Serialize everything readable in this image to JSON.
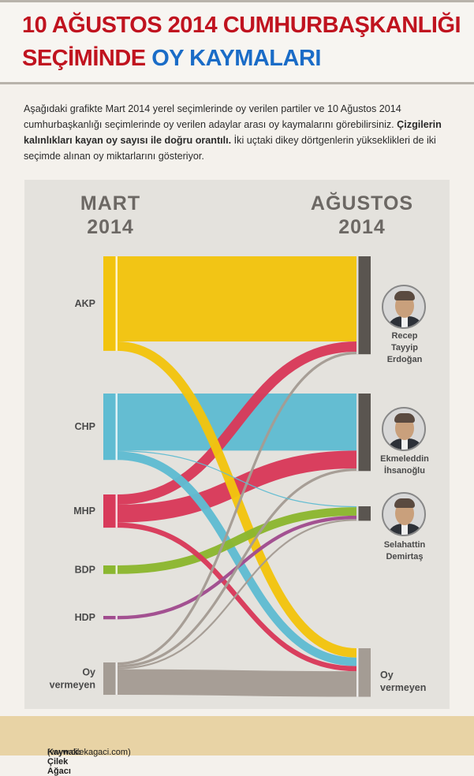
{
  "title": {
    "line1": "10 AĞUSTOS 2014 CUMHURBAŞKANLIĞI",
    "line2_red": "SEÇİMİNDE",
    "line2_blue": "OY KAYMALARI"
  },
  "intro": {
    "p1": "Aşağıdaki grafikte Mart 2014 yerel seçimlerinde oy verilen partiler ve 10 Ağustos 2014 cumhurbaşkanlığı seçimlerinde oy verilen adaylar arası oy kaymalarını görebilirsiniz.",
    "bold": "Çizgilerin kalınlıkları kayan oy sayısı ile doğru orantılı.",
    "p2": "İki uçtaki dikey dörtgenlerin yükseklikleri de iki seçimde alınan oy miktarlarını gösteriyor."
  },
  "chart_data": {
    "type": "sankey",
    "left_title": [
      "MART",
      "2014"
    ],
    "right_title": [
      "AĞUSTOS",
      "2014"
    ],
    "colors": {
      "AKP": "#f2c40e",
      "CHP": "#5fbcd2",
      "MHP": "#d83a5a",
      "BDP": "#8bb730",
      "HDP": "#a04c8e",
      "Oy vermeyen": "#a49c94",
      "node": "#5a5550"
    },
    "left_nodes": [
      {
        "name": "AKP",
        "label": [
          "AKP"
        ]
      },
      {
        "name": "CHP",
        "label": [
          "CHP"
        ]
      },
      {
        "name": "MHP",
        "label": [
          "MHP"
        ]
      },
      {
        "name": "BDP",
        "label": [
          "BDP"
        ]
      },
      {
        "name": "HDP",
        "label": [
          "HDP"
        ]
      },
      {
        "name": "Oy vermeyen",
        "label": [
          "Oy",
          "vermeyen"
        ]
      }
    ],
    "right_nodes": [
      {
        "name": "Erdoğan",
        "label": [
          "Recep",
          "Tayyip",
          "Erdoğan"
        ],
        "icon": "erdogan-portrait"
      },
      {
        "name": "İhsanoğlu",
        "label": [
          "Ekmeleddin",
          "İhsanoğlu"
        ],
        "icon": "ihsanoglu-portrait"
      },
      {
        "name": "Demirtaş",
        "label": [
          "Selahattin",
          "Demirtaş"
        ],
        "icon": "demirtas-portrait"
      },
      {
        "name": "Oy vermeyen",
        "label": [
          "Oy",
          "vermeyen"
        ]
      }
    ],
    "flows": [
      {
        "source": "AKP",
        "target": "Erdoğan",
        "value": 100
      },
      {
        "source": "AKP",
        "target": "Oy vermeyen",
        "value": 11
      },
      {
        "source": "CHP",
        "target": "İhsanoğlu",
        "value": 67
      },
      {
        "source": "CHP",
        "target": "Demirtaş",
        "value": 1
      },
      {
        "source": "CHP",
        "target": "Oy vermeyen",
        "value": 10
      },
      {
        "source": "MHP",
        "target": "Erdoğan",
        "value": 12
      },
      {
        "source": "MHP",
        "target": "İhsanoğlu",
        "value": 21
      },
      {
        "source": "MHP",
        "target": "Oy vermeyen",
        "value": 6
      },
      {
        "source": "BDP",
        "target": "Demirtaş",
        "value": 10
      },
      {
        "source": "HDP",
        "target": "Demirtaş",
        "value": 4
      },
      {
        "source": "Oy vermeyen",
        "target": "Erdoğan",
        "value": 3
      },
      {
        "source": "Oy vermeyen",
        "target": "İhsanoğlu",
        "value": 3
      },
      {
        "source": "Oy vermeyen",
        "target": "Demirtaş",
        "value": 2
      },
      {
        "source": "Oy vermeyen",
        "target": "Oy vermeyen",
        "value": 30
      }
    ]
  },
  "footer": {
    "source_label": "Kaynak: Çilek Ağacı",
    "source_url": "(www.cilekagaci.com)"
  }
}
